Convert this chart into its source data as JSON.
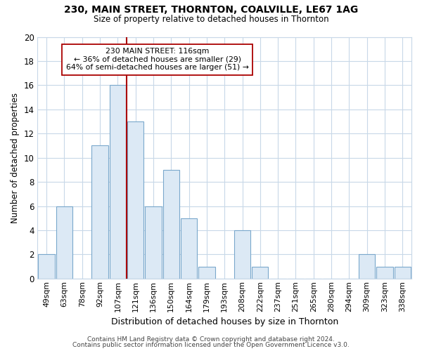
{
  "title": "230, MAIN STREET, THORNTON, COALVILLE, LE67 1AG",
  "subtitle": "Size of property relative to detached houses in Thornton",
  "xlabel": "Distribution of detached houses by size in Thornton",
  "ylabel": "Number of detached properties",
  "bar_labels": [
    "49sqm",
    "63sqm",
    "78sqm",
    "92sqm",
    "107sqm",
    "121sqm",
    "136sqm",
    "150sqm",
    "164sqm",
    "179sqm",
    "193sqm",
    "208sqm",
    "222sqm",
    "237sqm",
    "251sqm",
    "265sqm",
    "280sqm",
    "294sqm",
    "309sqm",
    "323sqm",
    "338sqm"
  ],
  "bar_values": [
    2,
    6,
    0,
    11,
    16,
    13,
    6,
    9,
    5,
    1,
    0,
    4,
    1,
    0,
    0,
    0,
    0,
    0,
    2,
    1,
    1
  ],
  "bar_color": "#dce9f5",
  "bar_edge_color": "#7aa8cc",
  "ylim": [
    0,
    20
  ],
  "yticks": [
    0,
    2,
    4,
    6,
    8,
    10,
    12,
    14,
    16,
    18,
    20
  ],
  "vline_x_index": 4,
  "vline_color": "#aa0000",
  "annotation_text": "230 MAIN STREET: 116sqm\n← 36% of detached houses are smaller (29)\n64% of semi-detached houses are larger (51) →",
  "annotation_box_color": "#ffffff",
  "annotation_box_edge_color": "#aa0000",
  "footer_line1": "Contains HM Land Registry data © Crown copyright and database right 2024.",
  "footer_line2": "Contains public sector information licensed under the Open Government Licence v3.0.",
  "background_color": "#ffffff",
  "grid_color": "#c8d8e8"
}
